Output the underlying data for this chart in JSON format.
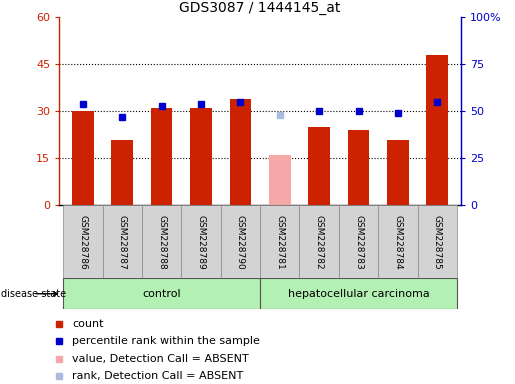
{
  "title": "GDS3087 / 1444145_at",
  "samples": [
    "GSM228786",
    "GSM228787",
    "GSM228788",
    "GSM228789",
    "GSM228790",
    "GSM228781",
    "GSM228782",
    "GSM228783",
    "GSM228784",
    "GSM228785"
  ],
  "count_values": [
    30,
    21,
    31,
    31,
    34,
    16,
    25,
    24,
    21,
    48
  ],
  "percentile_values": [
    54,
    47,
    53,
    54,
    55,
    48,
    50,
    50,
    49,
    55
  ],
  "absent_flags": [
    false,
    false,
    false,
    false,
    false,
    true,
    false,
    false,
    false,
    false
  ],
  "control_count": 5,
  "carcinoma_count": 5,
  "ylim_left": [
    0,
    60
  ],
  "ylim_right": [
    0,
    100
  ],
  "yticks_left": [
    0,
    15,
    30,
    45,
    60
  ],
  "ytick_labels_left": [
    "0",
    "15",
    "30",
    "45",
    "60"
  ],
  "yticks_right": [
    0,
    25,
    50,
    75,
    100
  ],
  "ytick_labels_right": [
    "0",
    "25",
    "50",
    "75",
    "100%"
  ],
  "bar_color_normal": "#cc2200",
  "bar_color_absent": "#f4a8a8",
  "dot_color_normal": "#0000cc",
  "dot_color_absent": "#aabbdd",
  "grid_dotted_color": "#333333",
  "bg_plot": "#ffffff",
  "bg_xticklabel": "#d3d3d3",
  "bg_control": "#b3f0b3",
  "bg_carcinoma": "#b3f0b3",
  "legend_labels": [
    "count",
    "percentile rank within the sample",
    "value, Detection Call = ABSENT",
    "rank, Detection Call = ABSENT"
  ],
  "title_fontsize": 10,
  "tick_fontsize": 8,
  "legend_fontsize": 8
}
